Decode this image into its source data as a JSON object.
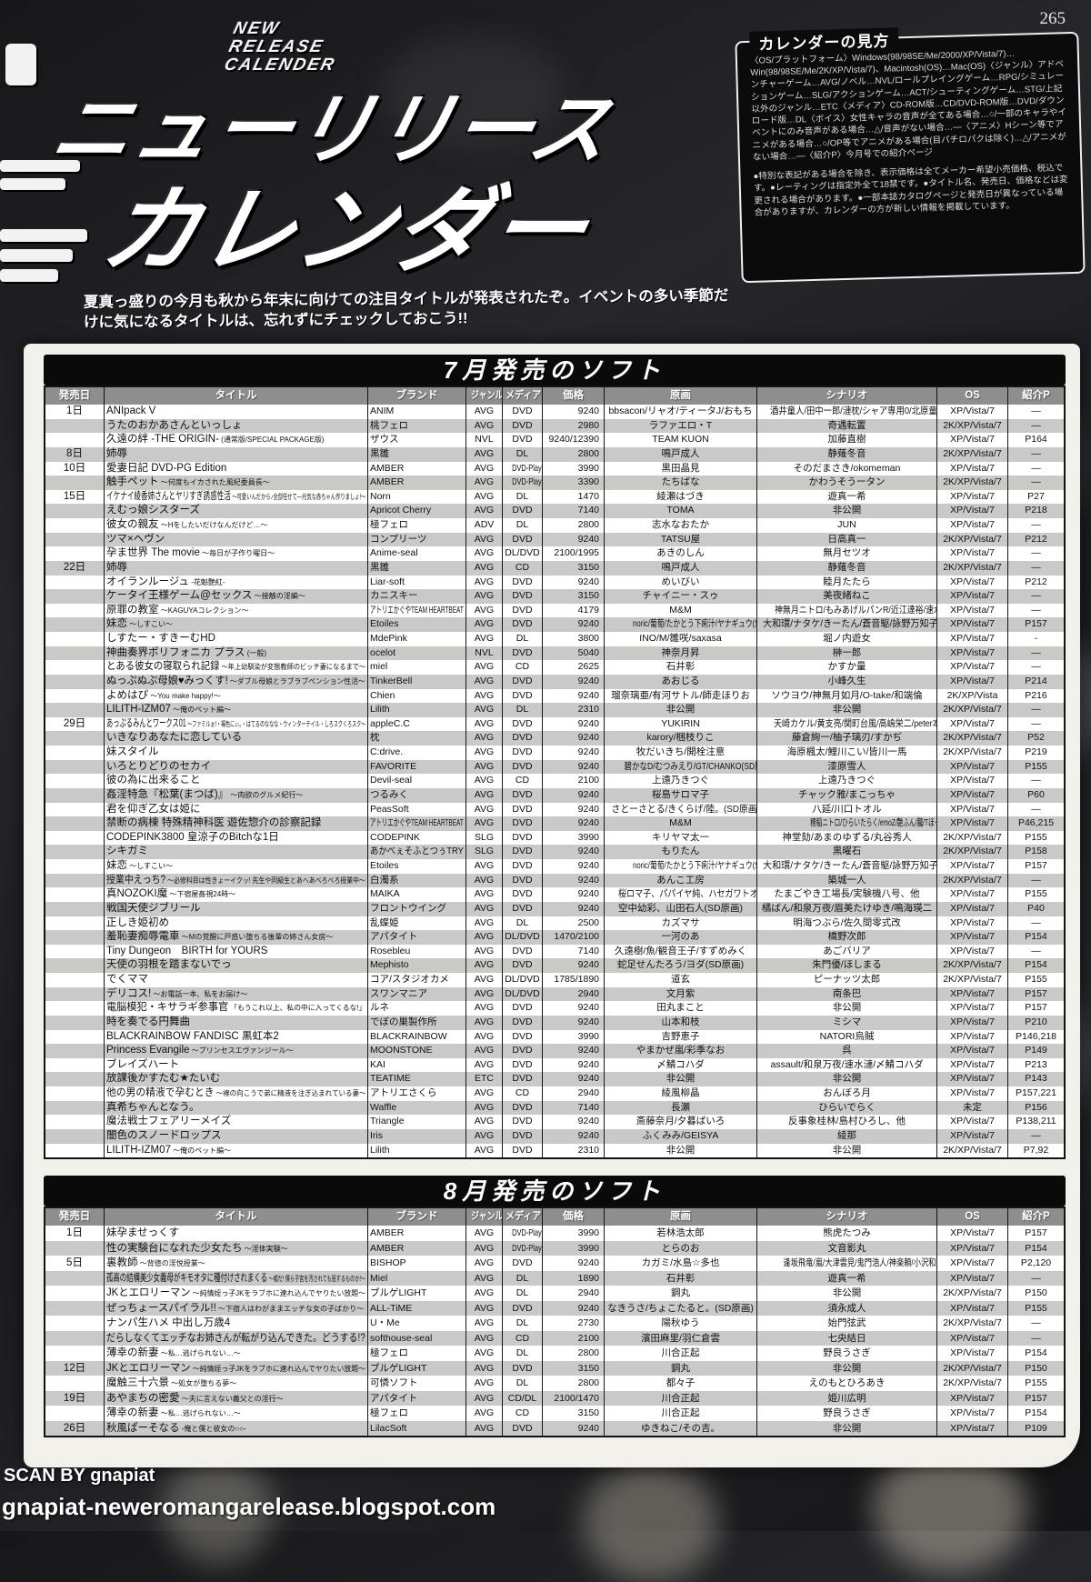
{
  "page": {
    "number": "265"
  },
  "logo": {
    "kicker_lines": [
      "NEW",
      "RELEASE",
      "CALENDER"
    ],
    "line1": "ニューリリース",
    "line2": "カレンダー"
  },
  "legend": {
    "title": "カレンダーの見方",
    "body": "〈OS/プラットフォーム〉Windows(98/98SE/Me/2000/XP/Vista/7)…Win(98/98SE/Me/2K/XP/Vista/7)、Macintosh(OS)…Mac(OS)〈ジャンル〉アドベンチャーゲーム…AVG/ノベル…NVL/ロールプレイングゲーム…RPG/シミュレーションゲーム…SLG/アクションゲーム…ACT/シューティングゲーム…STG/上記以外のジャンル…ETC〈メディア〉CD-ROM版…CD/DVD-ROM版…DVD/ダウンロード版…DL〈ボイス〉女性キャラの音声が全てある場合…○/一部のキャラやイベントにのみ音声がある場合…△/音声がない場合…―〈アニメ〉Hシーン等でアニメがある場合…○/OP等でアニメがある場合(目パチロパクは除く)…△/アニメがない場合…―〈紹介P〉今月号での紹介ページ",
    "notes": "●特別な表記がある場合を除き、表示価格は全てメーカー希望小売価格、税込です。●レーティングは指定外全て18禁です。●タイトル名、発売日、価格などは変更される場合があります。●一部本誌カタログページと発売日が異なっている場合がありますが、カレンダーの方が新しい情報を掲載しています。"
  },
  "intro": "夏真っ盛りの今月も秋から年末に向けての注目タイトルが発表されたぞ。イベントの多い季節だけに気になるタイトルは、忘れずにチェックしておこう!!",
  "table_headers": [
    "発売日",
    "タイトル",
    "ブランド",
    "ジャンル",
    "メディア",
    "価格",
    "原画",
    "シナリオ",
    "OS",
    "紹介P"
  ],
  "tables": [
    {
      "title": "7月発売のソフト",
      "rows": [
        [
          "1日",
          "ANIpack V",
          "",
          "ANIM",
          "AVG",
          "DVD",
          "9240",
          "bbsacon/リャオ/ティータJ/おもち",
          "酒井童人/田中一郎/漣枕/シャア専用0/北原童夢",
          "XP/Vista/7",
          "—"
        ],
        [
          "",
          "うたのおかあさんといっしょ",
          "",
          "桃フェロ",
          "AVG",
          "DVD",
          "2980",
          "ラファエロ・T",
          "奇遇転置",
          "2K/XP/Vista/7",
          "—"
        ],
        [
          "",
          "久遠の絆 -THE ORIGIN-",
          "(通常版/SPECIAL PACKAGE版)",
          "ザウス",
          "NVL",
          "DVD",
          "9240/12390",
          "TEAM KUON",
          "加藤直樹",
          "XP/Vista/7",
          "P164"
        ],
        [
          "8日",
          "姉辱",
          "",
          "黒雛",
          "AVG",
          "DL",
          "2800",
          "鳴戸成人",
          "静薙冬音",
          "2K/XP/Vista/7",
          "—"
        ],
        [
          "10日",
          "愛妻日記 DVD-PG Edition",
          "",
          "AMBER",
          "AVG",
          "DVD-Player",
          "3990",
          "黒田晶見",
          "そのだまさき/okomeman",
          "XP/Vista/7",
          "—"
        ],
        [
          "",
          "触手ペット",
          "〜何度もイカされた風紀委員長〜",
          "AMBER",
          "AVG",
          "DVD-Player",
          "3390",
          "たちばな",
          "かわうそうータン",
          "2K/XP/Vista/7",
          "—"
        ],
        [
          "15日",
          "イケナイ綾香姉さんとヤリすぎ誘惑性活",
          "〜可愛いんだから♪全部任せて―元気な赤ちゃん作りましょ!〜",
          "Norn",
          "AVG",
          "DL",
          "1470",
          "綾瀬はづき",
          "遊真一希",
          "XP/Vista/7",
          "P27"
        ],
        [
          "",
          "えむっ娘シスターズ",
          "",
          "Apricot Cherry",
          "AVG",
          "DVD",
          "7140",
          "TOMA",
          "非公開",
          "XP/Vista/7",
          "P218"
        ],
        [
          "",
          "彼女の親友",
          "〜Hをしたいだけなんだけど…〜",
          "極フェロ",
          "ADV",
          "DL",
          "2800",
          "志水なおたか",
          "JUN",
          "XP/Vista/7",
          "—"
        ],
        [
          "",
          "ツマ×ヘヴン",
          "",
          "コンプリーツ",
          "AVG",
          "DVD",
          "9240",
          "TATSU屋",
          "日高真一",
          "2K/XP/Vista/7",
          "P212"
        ],
        [
          "",
          "孕ま世界 The movie",
          "〜毎日が子作り曜日〜",
          "Anime-seal",
          "AVG",
          "DL/DVD",
          "2100/1995",
          "あきのしん",
          "無月セツオ",
          "XP/Vista/7",
          "—"
        ],
        [
          "22日",
          "姉辱",
          "",
          "黒雛",
          "AVG",
          "CD",
          "3150",
          "鳴戸成人",
          "静薙冬音",
          "2K/XP/Vista/7",
          "—"
        ],
        [
          "",
          "オイランルージュ",
          "-花魁艶紅-",
          "Liar-soft",
          "AVG",
          "DVD",
          "9240",
          "めいびい",
          "睦月たたら",
          "XP/Vista/7",
          "P212"
        ],
        [
          "",
          "ケータイ王様ゲーム@セックス",
          "〜接触の淫編〜",
          "カニスキー",
          "AVG",
          "DVD",
          "3150",
          "チャイニー・スゥ",
          "美夜緒ねこ",
          "XP/Vista/7",
          "—"
        ],
        [
          "",
          "原罪の教室",
          "〜KAGUYAコレクション〜",
          "アトリエかぐやTEAM HEARTBEAT",
          "AVG",
          "DVD",
          "4179",
          "M&M",
          "神無月ニトロ/もみあげルパンR/近江達裕/速水漣",
          "XP/Vista/7",
          "—"
        ],
        [
          "",
          "妹恋",
          "〜しすこい〜",
          "Etoiles",
          "AVG",
          "DVD",
          "9240",
          "noric/葡萄/たかとう下痢汁/ヤナギュウ(SD原画)",
          "大和環/ナタケ/きーたん/蒼音駆/詠野万知子",
          "XP/Vista/7",
          "P157"
        ],
        [
          "",
          "しすたー・すきーむHD",
          "",
          "MdePink",
          "AVG",
          "DL",
          "3800",
          "INO/M/雛咲/saxasa",
          "堀ノ内遊女",
          "XP/Vista/7",
          "-"
        ],
        [
          "",
          "神曲奏界ポリフォニカ プラス",
          "(一般)",
          "ocelot",
          "NVL",
          "DVD",
          "5040",
          "神奈月昇",
          "榊一郎",
          "XP/Vista/7",
          "—"
        ],
        [
          "",
          "とある彼女の寝取られ記録",
          "〜年上幼馴染が変態教師のビッチ妻になるまで〜",
          "miel",
          "AVG",
          "CD",
          "2625",
          "石井彰",
          "かすか量",
          "XP/Vista/7",
          "—"
        ],
        [
          "",
          "ぬっぷぬぷ母娘♥みっくす!",
          "〜ダブル母娘とラブラブペンション性活〜",
          "TinkerBell",
          "AVG",
          "DVD",
          "9240",
          "あおじる",
          "小峰久生",
          "XP/Vista/7",
          "P214"
        ],
        [
          "",
          "よめはぴ",
          "〜You make happy!〜",
          "Chien",
          "AVG",
          "DVD",
          "9240",
          "瑠奈璃亜/有河サトル/師走ほりお",
          "ソウヨウ/神無月如月/O-take/和端倫",
          "2K/XP/Vista",
          "P216"
        ],
        [
          "",
          "LILITH-IZM07",
          "〜俺のペット編〜",
          "Lilith",
          "AVG",
          "DL",
          "2310",
          "非公開",
          "非公開",
          "2K/XP/Vista/7",
          "—"
        ],
        [
          "29日",
          "あっぷるみんとワークス01",
          "〜ファミルぉ!・褐色にぃ。・はてるのななな・ウィンターテイル・しろスクくろスク〜",
          "appleC.C",
          "AVG",
          "DVD",
          "9240",
          "YUKIRIN",
          "天崎カケル/黄支亮/関町台風/高嶋栄二/peter本田",
          "XP/Vista/7",
          "—"
        ],
        [
          "",
          "いきなりあなたに恋している",
          "",
          "枕",
          "AVG",
          "DVD",
          "9240",
          "karory/梱枝りこ",
          "藤倉絢一/柚子璃刃/すかぢ",
          "2K/XP/Vista/7",
          "P52"
        ],
        [
          "",
          "妹スタイル",
          "",
          "C:drive.",
          "AVG",
          "DVD",
          "9240",
          "牧だいきち/開栓注意",
          "海原楓太/鯉川こい/皆川一馬",
          "2K/XP/Vista/7",
          "P219"
        ],
        [
          "",
          "いろとりどりのセカイ",
          "",
          "FAVORITE",
          "AVG",
          "DVD",
          "9240",
          "碧かなD/むつみえり/GT/CHANKO(SD原画)",
          "漆原雪人",
          "XP/Vista/7",
          "P155"
        ],
        [
          "",
          "彼の為に出来ること",
          "",
          "Devil-seal",
          "AVG",
          "CD",
          "2100",
          "上遠乃きつぐ",
          "上遠乃きつぐ",
          "XP/Vista/7",
          "—"
        ],
        [
          "",
          "姦淫特急『松葉(まつば)』",
          "〜肉欲のグルメ紀行〜",
          "つるみく",
          "AVG",
          "DVD",
          "9240",
          "桜島サロマ子",
          "チャック雅/まこっちゃ",
          "XP/Vista/7",
          "P60"
        ],
        [
          "",
          "君を仰ぎ乙女は姫に",
          "",
          "PeasSoft",
          "AVG",
          "DVD",
          "9240",
          "さとーさとる/きくらげ/陸。(SD原画)",
          "八延/川口トオル",
          "XP/Vista/7",
          "—"
        ],
        [
          "",
          "禁断の病棟 特殊精神科医 遊佐惣介の診察記録",
          "",
          "アトリエかぐやTEAM HEARTBEAT",
          "AVG",
          "DVD",
          "9240",
          "M&M",
          "穂稲ニトロ/ひらいたらく/emoZ/艶ふん/朧/Tほっしゃ/ぬふる/ぬち",
          "XP/Vista/7",
          "P46,215"
        ],
        [
          "",
          "CODEPINK3800 皇涼子のBitchな1日",
          "",
          "CODEPINK",
          "SLG",
          "DVD",
          "3990",
          "キリヤマ太一",
          "神堂劾/あまのゆずる/丸谷秀人",
          "2K/XP/Vista/7",
          "P155"
        ],
        [
          "",
          "シキガミ",
          "",
          "あかべぇそふとつぅTRY",
          "SLG",
          "DVD",
          "9240",
          "もりたん",
          "黒曜石",
          "2K/XP/Vista/7",
          "P158"
        ],
        [
          "",
          "妹恋",
          "〜しすこい〜",
          "Etoiles",
          "AVG",
          "DVD",
          "9240",
          "noric/葡萄/たかとう下痢汁/ヤナギュウ(SD原画)",
          "大和環/ナタケ/きーたん/蒼音駆/詠野万知子",
          "XP/Vista/7",
          "P157"
        ],
        [
          "",
          "授業中えっち?",
          "〜必修科目は性きょーイクッ! 先生や同級生とあへあべろべろ授業中〜",
          "白濁系",
          "AVG",
          "DVD",
          "9240",
          "あんこ工房",
          "築城一人",
          "2K/XP/Vista/7",
          "—"
        ],
        [
          "",
          "真NOZOKI魔",
          "〜下宿屋姦視24時〜",
          "MAIKA",
          "AVG",
          "DVD",
          "9240",
          "桜ロマ子、パパイヤ純、ハセガワトオル",
          "たまごやき工場長/実験機八号、他",
          "XP/Vista/7",
          "P155"
        ],
        [
          "",
          "戦国天使ジブリール",
          "",
          "フロントウイング",
          "AVG",
          "DVD",
          "9240",
          "空中幼彩、山田石人(SD原画)",
          "橘ばん/和泉万夜/眉美たけゆき/鳴海瑛二",
          "XP/Vista/7",
          "P40"
        ],
        [
          "",
          "正しき姫初め",
          "",
          "乱蝶姫",
          "AVG",
          "DL",
          "2500",
          "カズマサ",
          "明海つぶら/佐久間零式改",
          "XP/Vista/7",
          "—"
        ],
        [
          "",
          "羞恥妻痴辱電車",
          "〜Mの覚醒に戸惑い堕ちる後輩の姉さん女房〜",
          "アパタイト",
          "AVG",
          "DL/DVD",
          "1470/2100",
          "一河のあ",
          "橋野次郎",
          "XP/Vista/7",
          "P154"
        ],
        [
          "",
          "Tiny Dungeon　BIRTH for YOURS",
          "",
          "Rosebleu",
          "AVG",
          "DVD",
          "7140",
          "久遠樹/魚/観音王子/すずめみく",
          "あごバリア",
          "XP/Vista/7",
          "—"
        ],
        [
          "",
          "天使の羽根を踏まないでっ",
          "",
          "Mephisto",
          "AVG",
          "DVD",
          "9240",
          "蛇足せんたろう/ヨダ(SD原画)",
          "朱門優/ほしまる",
          "2K/XP/Vista/7",
          "P154"
        ],
        [
          "",
          "でくママ",
          "",
          "コア/スタジオカメ",
          "AVG",
          "DL/DVD",
          "1785/1890",
          "道玄",
          "ピーナッツ太郎",
          "2K/XP/Vista/7",
          "P155"
        ],
        [
          "",
          "デリコス!",
          "〜お電話一本、私をお届け〜",
          "スワンマニア",
          "AVG",
          "DL/DVD",
          "2940",
          "文月紫",
          "南条巴",
          "XP/Vista/7",
          "P157"
        ],
        [
          "",
          "電脳模犯・キサラギ参事官",
          "「もうこれ以上、私の中に入ってくるな!」",
          "ルネ",
          "AVG",
          "DVD",
          "9240",
          "田丸まこと",
          "非公開",
          "XP/Vista/7",
          "P157"
        ],
        [
          "",
          "時を奏でる円舞曲",
          "",
          "でぼの巣製作所",
          "AVG",
          "DVD",
          "9240",
          "山本和枝",
          "ミシマ",
          "XP/Vista/7",
          "P210"
        ],
        [
          "",
          "BLACKRAINBOW FANDISC 黒虹本2",
          "",
          "BLACKRAINBOW",
          "AVG",
          "DVD",
          "3990",
          "吉野恵子",
          "NATORI烏賊",
          "XP/Vista/7",
          "P146,218"
        ],
        [
          "",
          "Princess Evangile",
          "〜プリンセスエヴァンジール〜",
          "MOONSTONE",
          "AVG",
          "DVD",
          "9240",
          "やまかぜ嵐/彩季なお",
          "呉",
          "XP/Vista/7",
          "P149"
        ],
        [
          "",
          "ブレイズハート",
          "",
          "KAI",
          "AVG",
          "DVD",
          "9240",
          "〆鯖コハダ",
          "assault/和泉万夜/速水漣/〆鯖コハダ",
          "XP/Vista/7",
          "P213"
        ],
        [
          "",
          "放課後かすたむ★たいむ",
          "",
          "TEATIME",
          "ETC",
          "DVD",
          "9240",
          "非公開",
          "非公開",
          "XP/Vista/7",
          "P143"
        ],
        [
          "",
          "他の男の精液で孕むとき",
          "〜襖の向こうで弟に精液を注ぎ込まれている妻〜",
          "アトリエさくら",
          "AVG",
          "CD",
          "2940",
          "綾風柳晶",
          "おんぼろ月",
          "XP/Vista/7",
          "P157,221"
        ],
        [
          "",
          "真希ちゃんとなう。",
          "",
          "Waffle",
          "AVG",
          "DVD",
          "7140",
          "長瀬",
          "ひらいでらく",
          "未定",
          "P156"
        ],
        [
          "",
          "魔法戦士フェアリーメイズ",
          "",
          "Triangle",
          "AVG",
          "DVD",
          "9240",
          "斎藤奈月/夕暮ばいろ",
          "反事象桂林/島村ひろし、他",
          "XP/Vista/7",
          "P138,211"
        ],
        [
          "",
          "闇色のスノードロップス",
          "",
          "Iris",
          "AVG",
          "DVD",
          "9240",
          "ふくみみ/GEISYA",
          "綾那",
          "XP/Vista/7",
          "—"
        ],
        [
          "",
          "LILITH-IZM07",
          "〜俺のペット編〜",
          "Lilith",
          "AVG",
          "DVD",
          "2310",
          "非公開",
          "非公開",
          "2K/XP/Vista/7",
          "P7,92"
        ]
      ]
    },
    {
      "title": "8月発売のソフト",
      "rows": [
        [
          "1日",
          "妹孕ませっくす",
          "",
          "AMBER",
          "AVG",
          "DVD-Player",
          "3990",
          "若林浩太郎",
          "熊虎たつみ",
          "XP/Vista/7",
          "P157"
        ],
        [
          "",
          "性の実験台になれた少女たち",
          "〜淫体実験〜",
          "AMBER",
          "AVG",
          "DVD-Player",
          "3990",
          "とらのお",
          "文音影丸",
          "XP/Vista/7",
          "P154"
        ],
        [
          "5日",
          "裏教師",
          "〜背徳の淫悦授業〜",
          "BISHOP",
          "AVG",
          "DVD",
          "9240",
          "カガミ/水島☆多也",
          "逢坂飛竜/嵐/大津雲見/鬼門浩人/神楽頼/小沢和城、他",
          "XP/Vista/7",
          "P2,120"
        ],
        [
          "",
          "孤高の結構美少女義母がキモオタに種付けされまくる",
          "〜嘘だ! 僕ら子宮を汚されても屈するものか!〜",
          "Miel",
          "AVG",
          "DL",
          "1890",
          "石井彰",
          "遊真一希",
          "XP/Vista/7",
          "—"
        ],
        [
          "",
          "JKとエロリーマン",
          "〜純情姪っ子JKをラブホに連れ込んでヤりたい放題〜",
          "ブルゲLIGHT",
          "AVG",
          "DL",
          "2940",
          "鋼丸",
          "非公開",
          "2K/XP/Vista/7",
          "P150"
        ],
        [
          "",
          "ぜっちょースパイラル!!",
          "〜下宿人はわがままエッチな女の子ばかり〜",
          "ALL-TiME",
          "AVG",
          "DVD",
          "9240",
          "なきうさ/ちょこたると。(SD原画)",
          "須永成人",
          "XP/Vista/7",
          "P155"
        ],
        [
          "",
          "ナンパ生ハメ 中出し万歳4",
          "",
          "U・Me",
          "AVG",
          "DL",
          "2730",
          "陽秋ゆう",
          "始門弦武",
          "2K/XP/Vista/7",
          "—"
        ],
        [
          "",
          "だらしなくてエッチなお姉さんが転がり込んできた。どうする!?",
          "",
          "softhouse-seal",
          "AVG",
          "CD",
          "2100",
          "濱田麻里/羽仁倉雲",
          "七央結日",
          "XP/Vista/7",
          "—"
        ],
        [
          "",
          "薄幸の新妻",
          "〜私…逃げられない…〜",
          "極フェロ",
          "AVG",
          "DL",
          "2800",
          "川合正起",
          "野良うさぎ",
          "XP/Vista/7",
          "P154"
        ],
        [
          "12日",
          "JKとエロリーマン",
          "〜純情姪っ子JKをラブホに連れ込んでヤりたい放題〜",
          "ブルゲLIGHT",
          "AVG",
          "DVD",
          "3150",
          "鋼丸",
          "非公開",
          "2K/XP/Vista/7",
          "P150"
        ],
        [
          "",
          "魔触三十六景",
          "〜処女が堕ちる夢〜",
          "可憐ソフト",
          "AVG",
          "DL",
          "2800",
          "都々子",
          "えのもとひろあき",
          "2K/XP/Vista/7",
          "P155"
        ],
        [
          "19日",
          "あやまちの密愛",
          "〜夫に言えない義父との淫行〜",
          "アパタイト",
          "AVG",
          "CD/DL",
          "2100/1470",
          "川合正起",
          "姫川広明",
          "XP/Vista/7",
          "P157"
        ],
        [
          "",
          "薄幸の新妻",
          "〜私…逃げられない…〜",
          "極フェロ",
          "AVG",
          "CD",
          "3150",
          "川合正起",
          "野良うさぎ",
          "XP/Vista/7",
          "P154"
        ],
        [
          "26日",
          "秋風ぱーそなる",
          "-俺と僕と彼女の○○-",
          "LilacSoft",
          "AVG",
          "DVD",
          "9240",
          "ゆきねこ/その吉。",
          "非公開",
          "XP/Vista/7",
          "P109"
        ]
      ]
    }
  ],
  "footer": {
    "line1": "SCAN BY gnapiat",
    "line2": "gnapiat-neweromangarelease.blogspot.com"
  }
}
